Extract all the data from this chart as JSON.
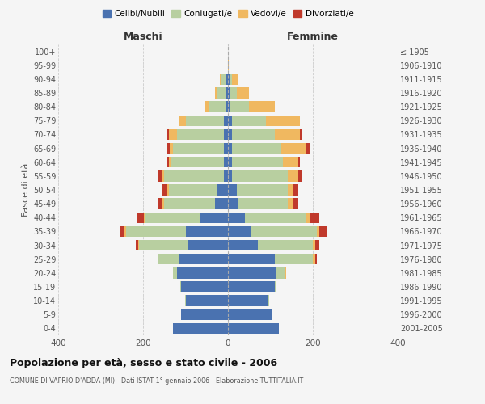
{
  "age_groups": [
    "0-4",
    "5-9",
    "10-14",
    "15-19",
    "20-24",
    "25-29",
    "30-34",
    "35-39",
    "40-44",
    "45-49",
    "50-54",
    "55-59",
    "60-64",
    "65-69",
    "70-74",
    "75-79",
    "80-84",
    "85-89",
    "90-94",
    "95-99",
    "100+"
  ],
  "birth_years": [
    "2001-2005",
    "1996-2000",
    "1991-1995",
    "1986-1990",
    "1981-1985",
    "1976-1980",
    "1971-1975",
    "1966-1970",
    "1961-1965",
    "1956-1960",
    "1951-1955",
    "1946-1950",
    "1941-1945",
    "1936-1940",
    "1931-1935",
    "1926-1930",
    "1921-1925",
    "1916-1920",
    "1911-1915",
    "1906-1910",
    "≤ 1905"
  ],
  "male": {
    "celibi": [
      130,
      110,
      100,
      110,
      120,
      115,
      95,
      100,
      65,
      30,
      25,
      10,
      10,
      10,
      10,
      10,
      5,
      5,
      5,
      0,
      0
    ],
    "coniugati": [
      0,
      0,
      1,
      3,
      10,
      50,
      115,
      140,
      130,
      120,
      115,
      140,
      125,
      120,
      110,
      90,
      40,
      20,
      10,
      0,
      0
    ],
    "vedovi": [
      0,
      0,
      0,
      0,
      0,
      0,
      2,
      3,
      3,
      5,
      5,
      5,
      5,
      8,
      20,
      15,
      10,
      5,
      5,
      0,
      0
    ],
    "divorziati": [
      0,
      0,
      0,
      0,
      0,
      0,
      5,
      10,
      15,
      10,
      10,
      8,
      5,
      5,
      5,
      0,
      0,
      0,
      0,
      0,
      0
    ]
  },
  "female": {
    "nubili": [
      120,
      105,
      95,
      110,
      115,
      110,
      70,
      55,
      40,
      25,
      20,
      10,
      10,
      10,
      10,
      10,
      5,
      5,
      5,
      0,
      0
    ],
    "coniugate": [
      0,
      0,
      2,
      5,
      20,
      90,
      130,
      155,
      145,
      115,
      120,
      130,
      120,
      115,
      100,
      80,
      45,
      15,
      5,
      0,
      0
    ],
    "vedove": [
      0,
      0,
      0,
      0,
      3,
      5,
      5,
      5,
      10,
      15,
      15,
      25,
      35,
      60,
      60,
      80,
      60,
      30,
      15,
      2,
      0
    ],
    "divorziate": [
      0,
      0,
      0,
      0,
      0,
      5,
      10,
      20,
      20,
      10,
      10,
      8,
      5,
      10,
      5,
      0,
      0,
      0,
      0,
      0,
      0
    ]
  },
  "colors": {
    "celibi": "#4a72b0",
    "coniugati": "#b8cfa0",
    "vedovi": "#f0b860",
    "divorziati": "#c0392b"
  },
  "title": "Popolazione per età, sesso e stato civile - 2006",
  "subtitle": "COMUNE DI VAPRIO D'ADDA (MI) - Dati ISTAT 1° gennaio 2006 - Elaborazione TUTTITALIA.IT",
  "xlabel_left": "Maschi",
  "xlabel_right": "Femmine",
  "ylabel_left": "Fasce di età",
  "legend_labels": [
    "Celibi/Nubili",
    "Coniugati/e",
    "Vedovi/e",
    "Divorziati/e"
  ],
  "xlim": 400,
  "background_color": "#f5f5f5",
  "grid_color": "#cccccc"
}
